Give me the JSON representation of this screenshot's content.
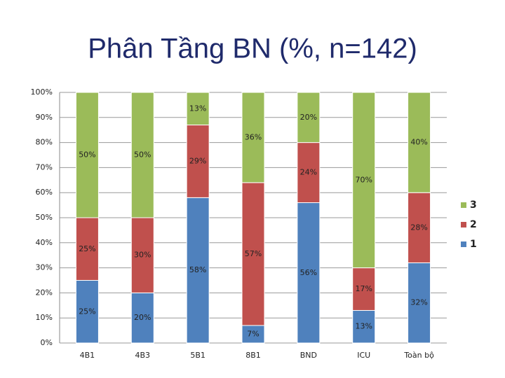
{
  "chart_data": {
    "type": "bar",
    "stacked": true,
    "title": "Phân Tầng BN (%, n=142)",
    "categories": [
      "4B1",
      "4B3",
      "5B1",
      "8B1",
      "BND",
      "ICU",
      "Toàn bộ"
    ],
    "series": [
      {
        "name": "1",
        "color": "#4f81bd",
        "values": [
          25,
          20,
          58,
          7,
          56,
          13,
          32
        ],
        "value_labels": [
          "25%",
          "20%",
          "58%",
          "7%",
          "56%",
          "13%",
          "32%"
        ]
      },
      {
        "name": "2",
        "color": "#c0504d",
        "values": [
          25,
          30,
          29,
          57,
          24,
          17,
          28
        ],
        "value_labels": [
          "25%",
          "30%",
          "29%",
          "57%",
          "24%",
          "17%",
          "28%"
        ]
      },
      {
        "name": "3",
        "color": "#9bbb59",
        "values": [
          50,
          50,
          13,
          36,
          20,
          70,
          40
        ],
        "value_labels": [
          "50%",
          "50%",
          "13%",
          "36%",
          "20%",
          "70%",
          "40%"
        ]
      }
    ],
    "ylim": [
      0,
      100
    ],
    "yticks": [
      {
        "value": 0,
        "label": "0%"
      },
      {
        "value": 10,
        "label": "10%"
      },
      {
        "value": 20,
        "label": "20%"
      },
      {
        "value": 30,
        "label": "30%"
      },
      {
        "value": 40,
        "label": "40%"
      },
      {
        "value": 50,
        "label": "50%"
      },
      {
        "value": 60,
        "label": "60%"
      },
      {
        "value": 70,
        "label": "70%"
      },
      {
        "value": 80,
        "label": "80%"
      },
      {
        "value": 90,
        "label": "90%"
      },
      {
        "value": 100,
        "label": "100%"
      }
    ],
    "grid": true,
    "legend": "right"
  }
}
